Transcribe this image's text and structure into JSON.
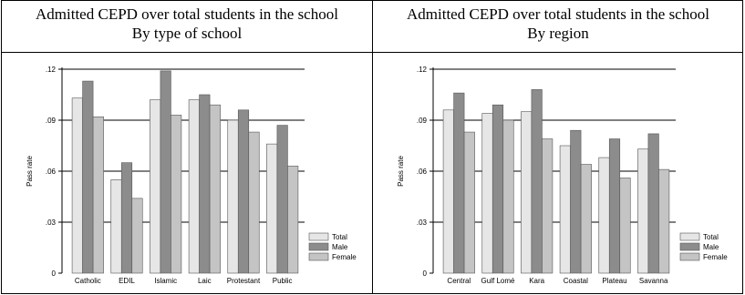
{
  "panels": [
    {
      "title_line1": "Admitted CEPD over total students in the school",
      "title_line2": "By type of school"
    },
    {
      "title_line1": "Admitted CEPD over total students in the school",
      "title_line2": "By region"
    }
  ],
  "chart_data": [
    {
      "type": "bar",
      "title": "Admitted CEPD over total students in the school By type of school",
      "ylabel": "Pass rate",
      "ylim": [
        0,
        0.12
      ],
      "yticks": [
        0,
        0.03,
        0.06,
        0.09,
        0.12
      ],
      "ytick_labels": [
        "0",
        ".03",
        ".06",
        ".09",
        ".12"
      ],
      "grid": true,
      "legend_position": "bottom-right",
      "categories": [
        "Catholic",
        "EDIL",
        "Islamic",
        "Laic",
        "Protestant",
        "Public"
      ],
      "series": [
        {
          "name": "Total",
          "color": "#e6e6e6",
          "values": [
            0.103,
            0.055,
            0.102,
            0.102,
            0.09,
            0.076
          ]
        },
        {
          "name": "Male",
          "color": "#8c8c8c",
          "values": [
            0.113,
            0.065,
            0.119,
            0.105,
            0.096,
            0.087
          ]
        },
        {
          "name": "Female",
          "color": "#c4c4c4",
          "values": [
            0.092,
            0.044,
            0.093,
            0.099,
            0.083,
            0.063
          ]
        }
      ]
    },
    {
      "type": "bar",
      "title": "Admitted CEPD over total students in the school By region",
      "ylabel": "Pass rate",
      "ylim": [
        0,
        0.12
      ],
      "yticks": [
        0,
        0.03,
        0.06,
        0.09,
        0.12
      ],
      "ytick_labels": [
        "0",
        ".03",
        ".06",
        ".09",
        ".12"
      ],
      "grid": true,
      "legend_position": "bottom-right",
      "categories": [
        "Central",
        "Gulf Lomé",
        "Kara",
        "Coastal",
        "Plateau",
        "Savanna"
      ],
      "series": [
        {
          "name": "Total",
          "color": "#e6e6e6",
          "values": [
            0.096,
            0.094,
            0.095,
            0.075,
            0.068,
            0.073
          ]
        },
        {
          "name": "Male",
          "color": "#8c8c8c",
          "values": [
            0.106,
            0.099,
            0.108,
            0.084,
            0.079,
            0.082
          ]
        },
        {
          "name": "Female",
          "color": "#c4c4c4",
          "values": [
            0.083,
            0.09,
            0.079,
            0.064,
            0.056,
            0.061
          ]
        }
      ]
    }
  ]
}
